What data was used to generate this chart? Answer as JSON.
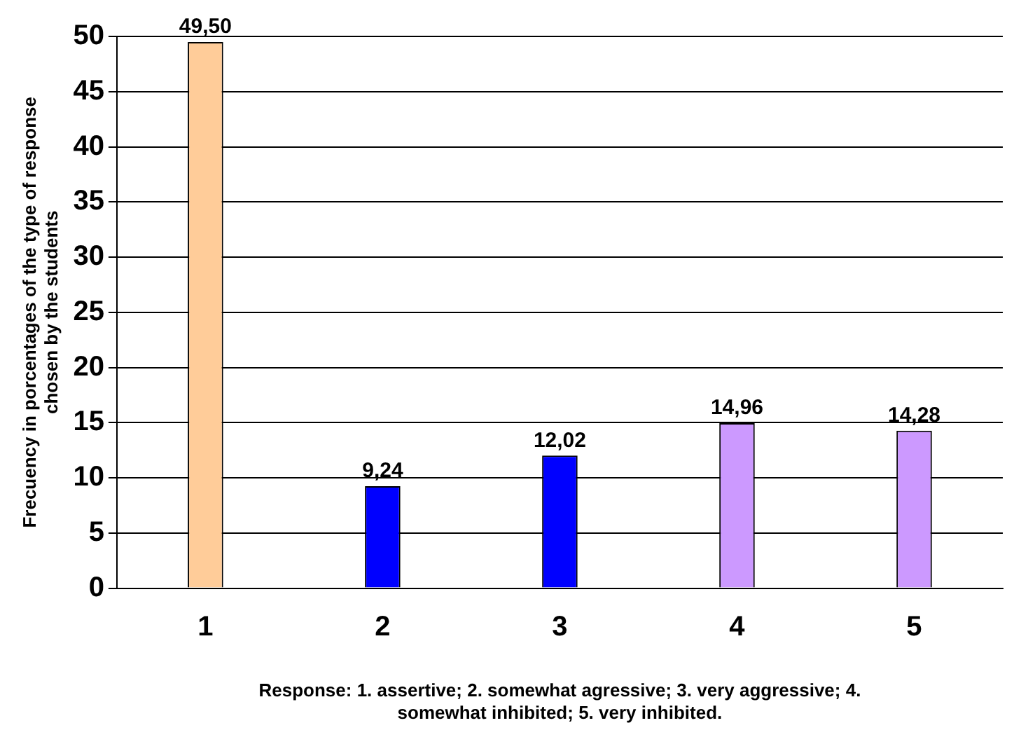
{
  "chart_data": {
    "type": "bar",
    "categories": [
      "1",
      "2",
      "3",
      "4",
      "5"
    ],
    "values": [
      49.5,
      9.24,
      12.02,
      14.96,
      14.28
    ],
    "colors": [
      "#ffcc99",
      "#0000ff",
      "#0000ff",
      "#cc99ff",
      "#cc99ff"
    ],
    "value_labels": [
      "49,50",
      "9,24",
      "12,02",
      "14,96",
      "14,28"
    ],
    "ylim": [
      0,
      50
    ],
    "yticks": [
      0,
      5,
      10,
      15,
      20,
      25,
      30,
      35,
      40,
      45,
      50
    ],
    "grid": "y",
    "legend": false,
    "xlabel": "Response: 1. assertive; 2. somewhat agressive; 3. very aggressive; 4. somewhat inhibited; 5. very inhibited.",
    "ylabel": "Frecuency in porcentages of the type of response chosen by the students"
  }
}
